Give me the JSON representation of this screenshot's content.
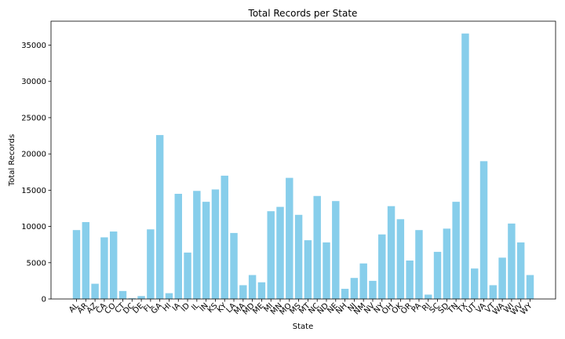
{
  "chart_data": {
    "type": "bar",
    "title": "Total Records per State",
    "xlabel": "State",
    "ylabel": "Total Records",
    "ylim": [
      0,
      38300
    ],
    "yticks": [
      0,
      5000,
      10000,
      15000,
      20000,
      25000,
      30000,
      35000
    ],
    "ytick_labels": [
      "0",
      "5000",
      "10000",
      "15000",
      "20000",
      "25000",
      "30000",
      "35000"
    ],
    "bar_color": "#87ceeb",
    "grid": false,
    "legend": "none",
    "categories": [
      "AL",
      "AR",
      "AZ",
      "CA",
      "CO",
      "CT",
      "DC",
      "DE",
      "FL",
      "GA",
      "HI",
      "IA",
      "ID",
      "IL",
      "IN",
      "KS",
      "KY",
      "LA",
      "MA",
      "MD",
      "ME",
      "MI",
      "MN",
      "MO",
      "MS",
      "MT",
      "NC",
      "ND",
      "NE",
      "NH",
      "NJ",
      "NM",
      "NV",
      "NY",
      "OH",
      "OK",
      "OR",
      "PA",
      "RI",
      "SC",
      "SD",
      "TN",
      "TX",
      "UT",
      "VA",
      "VT",
      "WA",
      "WI",
      "WV",
      "WY"
    ],
    "values": [
      9500,
      10600,
      2100,
      8500,
      9300,
      1100,
      100,
      400,
      9600,
      22600,
      800,
      14500,
      6400,
      14900,
      13400,
      15100,
      17000,
      9100,
      1900,
      3300,
      2300,
      12100,
      12700,
      16700,
      11600,
      8100,
      14200,
      7800,
      13500,
      1400,
      2900,
      4900,
      2500,
      8900,
      12800,
      11000,
      5300,
      9500,
      600,
      6500,
      9700,
      13400,
      36600,
      4200,
      19000,
      1900,
      5700,
      10400,
      7800,
      3300
    ]
  }
}
